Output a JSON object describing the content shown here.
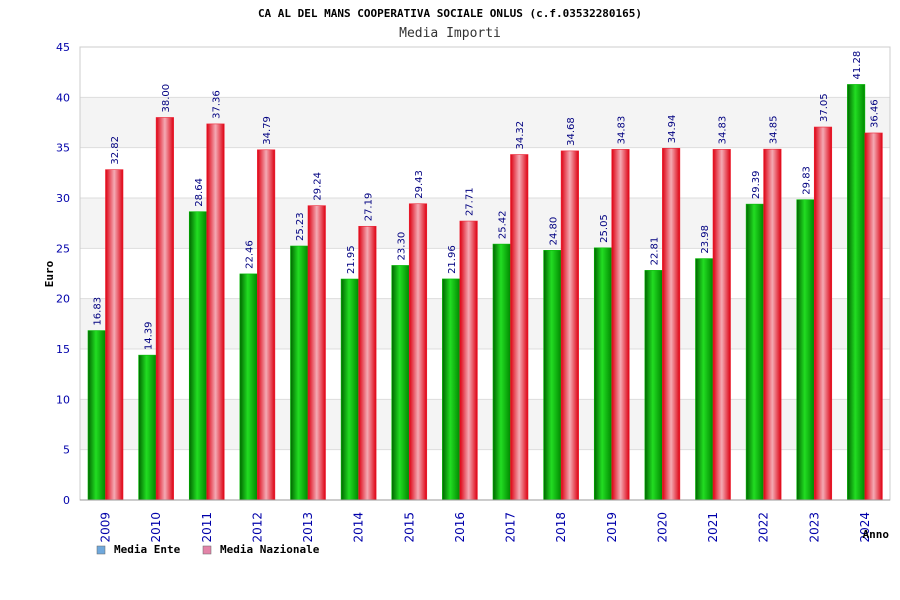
{
  "chart_data": {
    "type": "bar",
    "title": "CA AL DEL MANS COOPERATIVA SOCIALE ONLUS (c.f.03532280165)",
    "subtitle": "Media Importi",
    "xlabel": "Anno",
    "ylabel": "Euro",
    "ylim": [
      0,
      45
    ],
    "yticks": [
      0,
      5,
      10,
      15,
      20,
      25,
      30,
      35,
      40,
      45
    ],
    "grid": true,
    "legend_position": "bottom-left",
    "categories": [
      "2009",
      "2010",
      "2011",
      "2012",
      "2013",
      "2014",
      "2015",
      "2016",
      "2017",
      "2018",
      "2019",
      "2020",
      "2021",
      "2022",
      "2023",
      "2024"
    ],
    "series": [
      {
        "name": "Media Ente",
        "legend_color": "#6fa8dc",
        "color": "#00bb00",
        "values": [
          16.83,
          14.39,
          28.64,
          22.46,
          25.23,
          21.95,
          23.3,
          21.96,
          25.42,
          24.8,
          25.05,
          22.81,
          23.98,
          29.39,
          29.83,
          41.28
        ],
        "labels": [
          "16.83",
          "14.39",
          "28.64",
          "22.46",
          "25.23",
          "21.95",
          "23.30",
          "21.96",
          "25.42",
          "24.80",
          "25.05",
          "22.81",
          "23.98",
          "29.39",
          "29.83",
          "41.28"
        ]
      },
      {
        "name": "Media Nazionale",
        "legend_color": "#e384a8",
        "color": "#ee2233",
        "values": [
          32.82,
          38.0,
          37.36,
          34.79,
          29.24,
          27.19,
          29.43,
          27.71,
          34.32,
          34.68,
          34.83,
          34.94,
          34.83,
          34.85,
          37.05,
          36.46
        ],
        "labels": [
          "32.82",
          "38.00",
          "37.36",
          "34.79",
          "29.24",
          "27.19",
          "29.43",
          "27.71",
          "34.32",
          "34.68",
          "34.83",
          "34.94",
          "34.83",
          "34.85",
          "37.05",
          "36.46"
        ]
      }
    ]
  }
}
